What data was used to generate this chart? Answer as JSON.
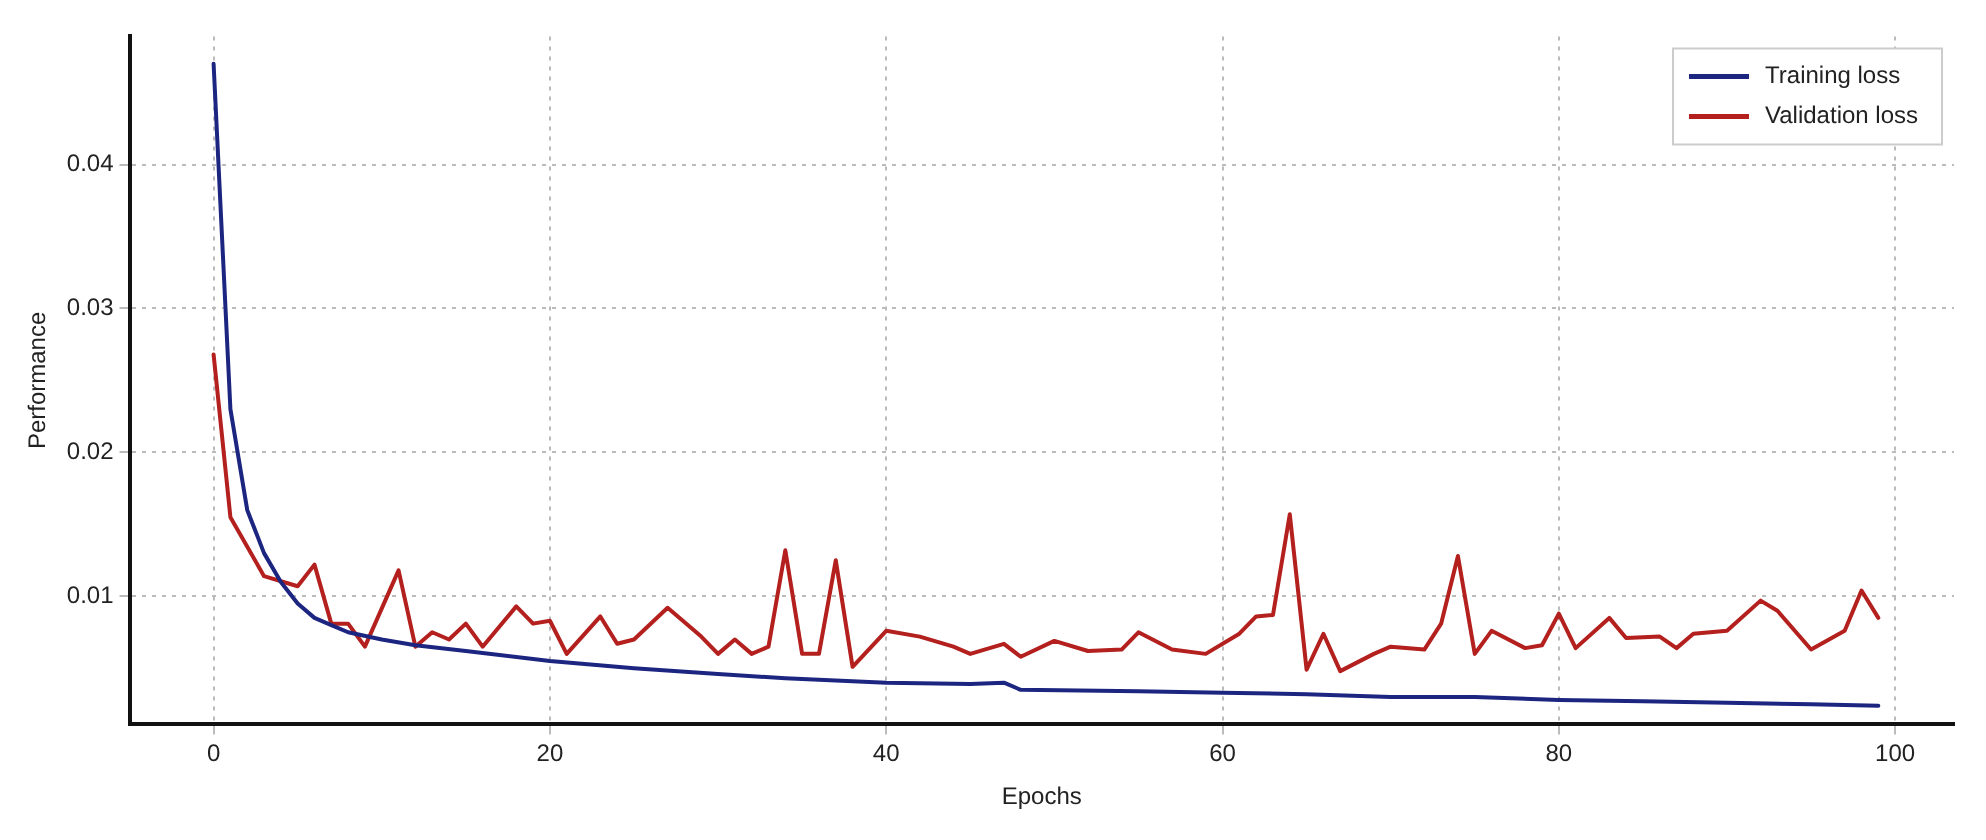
{
  "chart_data": {
    "type": "line",
    "xlabel": "Epochs",
    "ylabel": "Performance",
    "xlim": [
      -5,
      103.5
    ],
    "ylim": [
      0.0011,
      0.0489
    ],
    "xticks": [
      0,
      20,
      40,
      60,
      80,
      100
    ],
    "yticks": [
      0.01,
      0.02,
      0.03,
      0.04
    ],
    "grid": true,
    "legend": "top right",
    "marker": "none",
    "line_style": "solid",
    "series": [
      {
        "name": "Training loss",
        "color": "#1c2680",
        "x": [
          0,
          1,
          2,
          3,
          4,
          5,
          6,
          7,
          8,
          10,
          12,
          15,
          20,
          25,
          30,
          34,
          40,
          45,
          47,
          48,
          55,
          60,
          65,
          70,
          75,
          80,
          85,
          90,
          95,
          99
        ],
        "values": [
          0.047,
          0.023,
          0.016,
          0.013,
          0.011,
          0.0095,
          0.0085,
          0.008,
          0.0075,
          0.007,
          0.0066,
          0.0062,
          0.0055,
          0.005,
          0.0046,
          0.0043,
          0.004,
          0.0039,
          0.004,
          0.0035,
          0.0034,
          0.0033,
          0.0032,
          0.003,
          0.003,
          0.0028,
          0.0027,
          0.0026,
          0.0025,
          0.0024
        ]
      },
      {
        "name": "Validation loss",
        "color": "#b3201e",
        "x": [
          0,
          1,
          3,
          5,
          6,
          7,
          8,
          9,
          11,
          12,
          13,
          14,
          15,
          16,
          18,
          19,
          20,
          21,
          23,
          24,
          25,
          27,
          29,
          30,
          31,
          32,
          33,
          34,
          35,
          36,
          37,
          38,
          40,
          42,
          44,
          45,
          47,
          48,
          50,
          52,
          54,
          55,
          57,
          59,
          61,
          62,
          63,
          64,
          65,
          66,
          67,
          69,
          70,
          72,
          73,
          74,
          75,
          76,
          78,
          79,
          80,
          81,
          83,
          84,
          86,
          87,
          88,
          90,
          92,
          93,
          95,
          97,
          98,
          99
        ],
        "values": [
          0.0268,
          0.0155,
          0.0114,
          0.0107,
          0.0122,
          0.0081,
          0.0081,
          0.0065,
          0.0118,
          0.0065,
          0.0075,
          0.007,
          0.0081,
          0.0065,
          0.0093,
          0.0081,
          0.0083,
          0.006,
          0.0086,
          0.0067,
          0.007,
          0.0092,
          0.0072,
          0.006,
          0.007,
          0.006,
          0.0065,
          0.0132,
          0.006,
          0.006,
          0.0125,
          0.0051,
          0.0076,
          0.0072,
          0.0065,
          0.006,
          0.0067,
          0.0058,
          0.0069,
          0.0062,
          0.0063,
          0.0075,
          0.0063,
          0.006,
          0.0074,
          0.0086,
          0.0087,
          0.0157,
          0.0049,
          0.0074,
          0.0048,
          0.006,
          0.0065,
          0.0063,
          0.0081,
          0.0128,
          0.006,
          0.0076,
          0.0064,
          0.0066,
          0.0088,
          0.0064,
          0.0085,
          0.0071,
          0.0072,
          0.0064,
          0.0074,
          0.0076,
          0.0097,
          0.009,
          0.0063,
          0.0076,
          0.0104,
          0.0085
        ]
      }
    ]
  }
}
